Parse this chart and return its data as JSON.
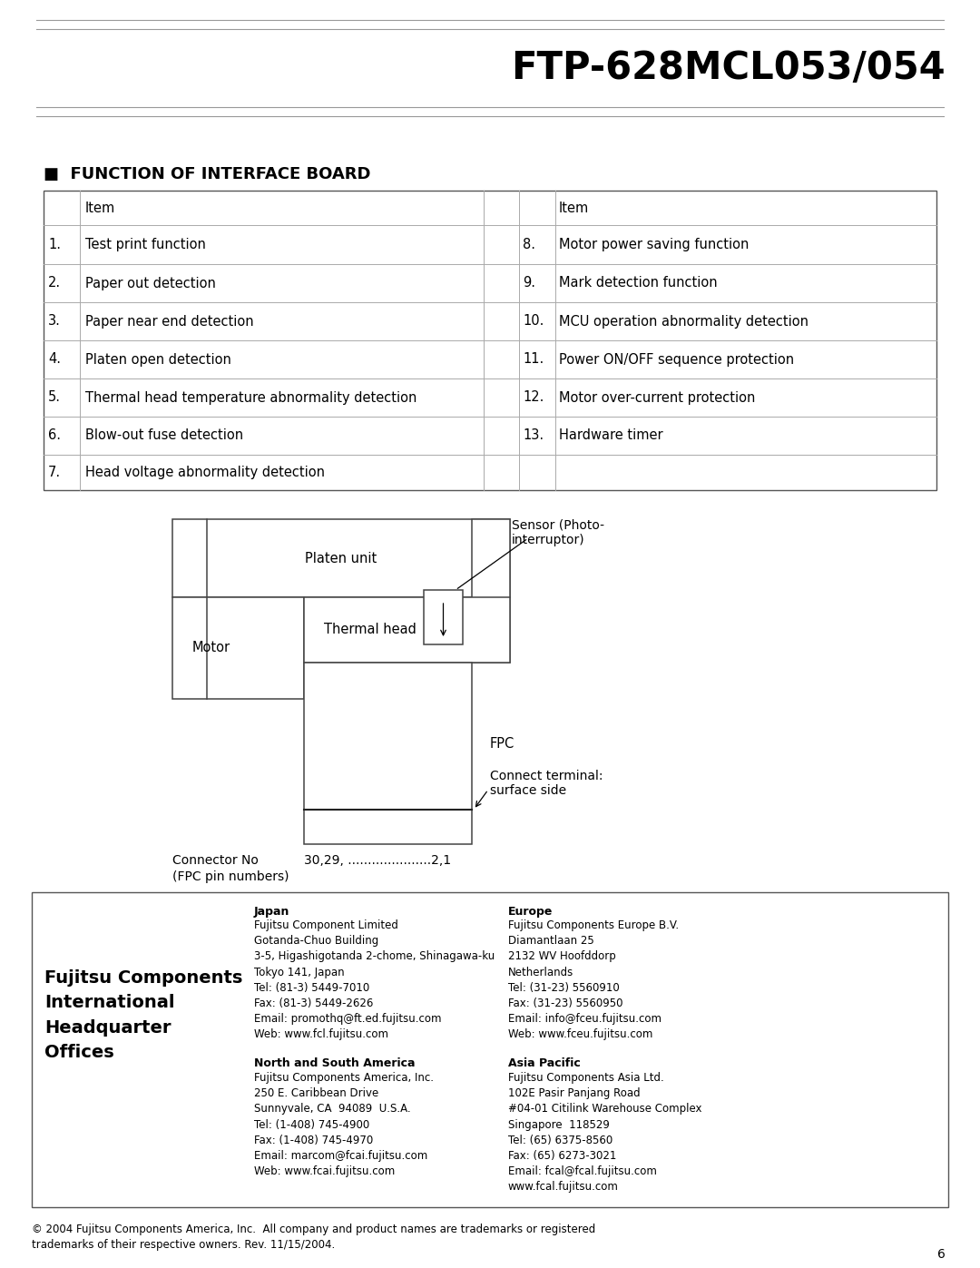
{
  "title": "FTP-628MCL053/054",
  "section_title": "■  FUNCTION OF INTERFACE BOARD",
  "table_left": [
    [
      "",
      "Item"
    ],
    [
      "1.",
      "Test print function"
    ],
    [
      "2.",
      "Paper out detection"
    ],
    [
      "3.",
      "Paper near end detection"
    ],
    [
      "4.",
      "Platen open detection"
    ],
    [
      "5.",
      "Thermal head temperature abnormality detection"
    ],
    [
      "6.",
      "Blow-out fuse detection"
    ],
    [
      "7.",
      "Head voltage abnormality detection"
    ]
  ],
  "table_right": [
    [
      "",
      "Item"
    ],
    [
      "8.",
      "Motor power saving function"
    ],
    [
      "9.",
      "Mark detection function"
    ],
    [
      "10.",
      "MCU operation abnormality detection"
    ],
    [
      "11.",
      "Power ON/OFF sequence protection"
    ],
    [
      "12.",
      "Motor over-current protection"
    ],
    [
      "13.",
      "Hardware timer"
    ],
    [
      "",
      ""
    ]
  ],
  "diagram_labels": {
    "sensor": "Sensor (Photo-\ninterruptor)",
    "platen": "Platen unit",
    "thermal": "Thermal head",
    "motor": "Motor",
    "fpc": "FPC",
    "connect": "Connect terminal:\nsurface side",
    "connector_no": "Connector No",
    "connector_nums": "30,29, .....................2,1",
    "fpc_pin": "(FPC pin numbers)"
  },
  "footer_box": {
    "company": "Fujitsu Components\nInternational\nHeadquarter\nOffices",
    "japan_title": "Japan",
    "japan_text": "Fujitsu Component Limited\nGotanda-Chuo Building\n3-5, Higashigotanda 2-chome, Shinagawa-ku\nTokyo 141, Japan\nTel: (81-3) 5449-7010\nFax: (81-3) 5449-2626\nEmail: promothq@ft.ed.fujitsu.com\nWeb: www.fcl.fujitsu.com",
    "nas_title": "North and South America",
    "nas_text": "Fujitsu Components America, Inc.\n250 E. Caribbean Drive\nSunnyvale, CA  94089  U.S.A.\nTel: (1-408) 745-4900\nFax: (1-408) 745-4970\nEmail: marcom@fcai.fujitsu.com\nWeb: www.fcai.fujitsu.com",
    "europe_title": "Europe",
    "europe_text": "Fujitsu Components Europe B.V.\nDiamantlaan 25\n2132 WV Hoofddorp\nNetherlands\nTel: (31-23) 5560910\nFax: (31-23) 5560950\nEmail: info@fceu.fujitsu.com\nWeb: www.fceu.fujitsu.com",
    "asia_title": "Asia Pacific",
    "asia_text": "Fujitsu Components Asia Ltd.\n102E Pasir Panjang Road\n#04-01 Citilink Warehouse Complex\nSingapore  118529\nTel: (65) 6375-8560\nFax: (65) 6273-3021\nEmail: fcal@fcal.fujitsu.com\nwww.fcal.fujitsu.com"
  },
  "copyright": "© 2004 Fujitsu Components America, Inc.  All company and product names are trademarks or registered\ntrademarks of their respective owners. Rev. 11/15/2004.",
  "page_number": "6",
  "bg_color": "#ffffff",
  "text_color": "#000000",
  "header_line_color": "#999999",
  "table_line_color": "#aaaaaa",
  "box_line_color": "#555555",
  "diag_line_color": "#444444"
}
